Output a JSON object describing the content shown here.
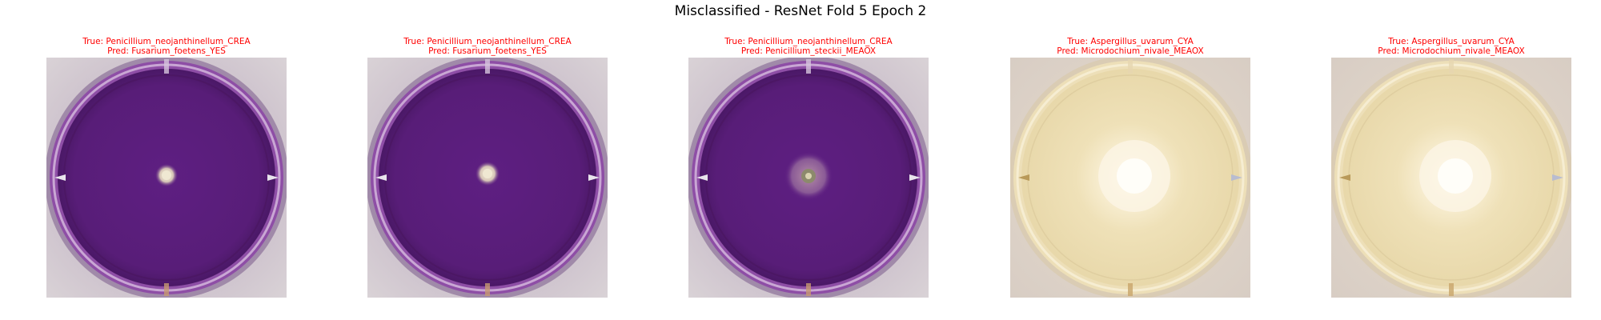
{
  "figure": {
    "title": "Misclassified - ResNet Fold 5 Epoch 2"
  },
  "colors": {
    "caption_text": "#ff0000",
    "purple_agar": "#5a1f7a",
    "cream_agar": "#efe3bf"
  },
  "panels": [
    {
      "true_label": "True: Penicillium_neojanthinellum_CREA",
      "pred_label": "Pred: Fusarium_foetens_YES",
      "image_desc": "purple-petri-dish"
    },
    {
      "true_label": "True: Penicillium_neojanthinellum_CREA",
      "pred_label": "Pred: Fusarium_foetens_YES",
      "image_desc": "purple-petri-dish"
    },
    {
      "true_label": "True: Penicillium_neojanthinellum_CREA",
      "pred_label": "Pred: Penicillium_steckii_MEAOX",
      "image_desc": "purple-petri-dish"
    },
    {
      "true_label": "True: Aspergillus_uvarum_CYA",
      "pred_label": "Pred: Microdochium_nivale_MEAOX",
      "image_desc": "cream-petri-dish"
    },
    {
      "true_label": "True: Aspergillus_uvarum_CYA",
      "pred_label": "Pred: Microdochium_nivale_MEAOX",
      "image_desc": "cream-petri-dish"
    }
  ]
}
